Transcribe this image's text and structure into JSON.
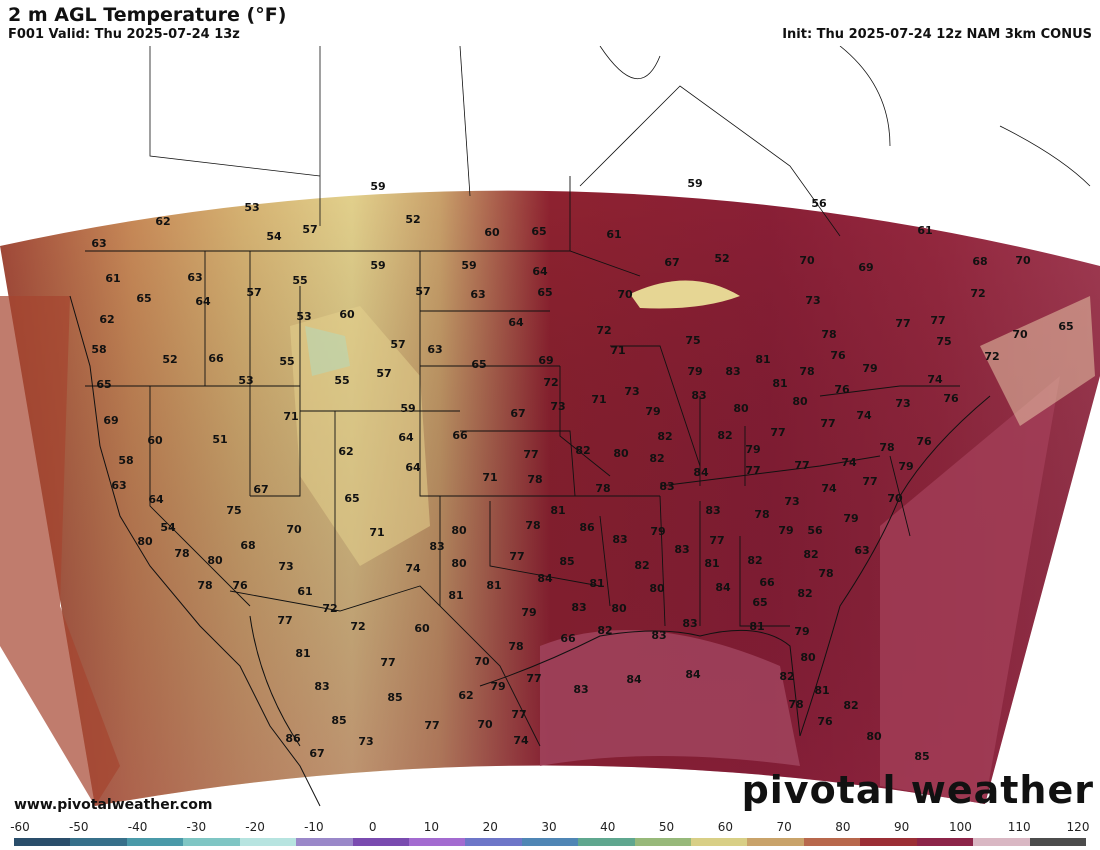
{
  "header": {
    "title": "2 m AGL Temperature (°F)",
    "valid": "F001 Valid: Thu 2025-07-24 13z",
    "init": "Init: Thu 2025-07-24 12z NAM 3km CONUS"
  },
  "footer": {
    "website": "www.pivotalweather.com",
    "brand": "pivotal weather"
  },
  "colorbar": {
    "ticks": [
      "-60",
      "-50",
      "-40",
      "-30",
      "-20",
      "-10",
      "0",
      "10",
      "20",
      "30",
      "40",
      "50",
      "60",
      "70",
      "80",
      "90",
      "100",
      "110",
      "120"
    ],
    "colors": [
      "#2a4e6b",
      "#37708a",
      "#4a9aa9",
      "#7fc6c4",
      "#b7e4e0",
      "#9a88c9",
      "#7a4bb0",
      "#a36bd0",
      "#6d76c8",
      "#4f86b5",
      "#5fa78f",
      "#97b97a",
      "#d8cf86",
      "#c9a36a",
      "#b8684c",
      "#9b2f35",
      "#8c2448",
      "#d9b7c3",
      "#4c4c4c"
    ],
    "accent_map": "#8a1f2e"
  },
  "stations": [
    {
      "v": "59"
    },
    {
      "v": "59"
    },
    {
      "v": "53"
    },
    {
      "v": "62"
    },
    {
      "v": "54"
    },
    {
      "v": "57"
    },
    {
      "v": "52"
    },
    {
      "v": "60"
    },
    {
      "v": "65"
    },
    {
      "v": "61"
    },
    {
      "v": "56"
    },
    {
      "v": "61"
    },
    {
      "v": "63"
    },
    {
      "v": "61"
    },
    {
      "v": "63"
    },
    {
      "v": "57"
    },
    {
      "v": "55"
    },
    {
      "v": "59"
    },
    {
      "v": "59"
    },
    {
      "v": "57"
    },
    {
      "v": "63"
    },
    {
      "v": "64"
    },
    {
      "v": "65"
    },
    {
      "v": "70"
    },
    {
      "v": "52"
    },
    {
      "v": "70"
    },
    {
      "v": "69"
    },
    {
      "v": "68"
    },
    {
      "v": "70"
    },
    {
      "v": "67"
    },
    {
      "v": "65"
    },
    {
      "v": "64"
    },
    {
      "v": "62"
    },
    {
      "v": "53"
    },
    {
      "v": "60"
    },
    {
      "v": "64"
    },
    {
      "v": "72"
    },
    {
      "v": "73"
    },
    {
      "v": "77"
    },
    {
      "v": "77"
    },
    {
      "v": "72"
    },
    {
      "v": "70"
    },
    {
      "v": "65"
    },
    {
      "v": "58"
    },
    {
      "v": "52"
    },
    {
      "v": "66"
    },
    {
      "v": "55"
    },
    {
      "v": "57"
    },
    {
      "v": "63"
    },
    {
      "v": "65"
    },
    {
      "v": "69"
    },
    {
      "v": "71"
    },
    {
      "v": "75"
    },
    {
      "v": "78"
    },
    {
      "v": "75"
    },
    {
      "v": "72"
    },
    {
      "v": "81"
    },
    {
      "v": "76"
    },
    {
      "v": "65"
    },
    {
      "v": "53"
    },
    {
      "v": "55"
    },
    {
      "v": "57"
    },
    {
      "v": "72"
    },
    {
      "v": "79"
    },
    {
      "v": "83"
    },
    {
      "v": "81"
    },
    {
      "v": "78"
    },
    {
      "v": "79"
    },
    {
      "v": "74"
    },
    {
      "v": "76"
    },
    {
      "v": "69"
    },
    {
      "v": "71"
    },
    {
      "v": "59"
    },
    {
      "v": "67"
    },
    {
      "v": "73"
    },
    {
      "v": "71"
    },
    {
      "v": "73"
    },
    {
      "v": "83"
    },
    {
      "v": "80"
    },
    {
      "v": "80"
    },
    {
      "v": "74"
    },
    {
      "v": "73"
    },
    {
      "v": "76"
    },
    {
      "v": "60"
    },
    {
      "v": "51"
    },
    {
      "v": "64"
    },
    {
      "v": "66"
    },
    {
      "v": "79"
    },
    {
      "v": "82"
    },
    {
      "v": "82"
    },
    {
      "v": "79"
    },
    {
      "v": "77"
    },
    {
      "v": "77"
    },
    {
      "v": "76"
    },
    {
      "v": "58"
    },
    {
      "v": "62"
    },
    {
      "v": "64"
    },
    {
      "v": "77"
    },
    {
      "v": "82"
    },
    {
      "v": "80"
    },
    {
      "v": "82"
    },
    {
      "v": "84"
    },
    {
      "v": "77"
    },
    {
      "v": "77"
    },
    {
      "v": "74"
    },
    {
      "v": "78"
    },
    {
      "v": "79"
    },
    {
      "v": "63"
    },
    {
      "v": "67"
    },
    {
      "v": "71"
    },
    {
      "v": "78"
    },
    {
      "v": "78"
    },
    {
      "v": "83"
    },
    {
      "v": "74"
    },
    {
      "v": "77"
    },
    {
      "v": "64"
    },
    {
      "v": "75"
    },
    {
      "v": "65"
    },
    {
      "v": "81"
    },
    {
      "v": "83"
    },
    {
      "v": "73"
    },
    {
      "v": "78"
    },
    {
      "v": "79"
    },
    {
      "v": "79"
    },
    {
      "v": "70"
    },
    {
      "v": "54"
    },
    {
      "v": "70"
    },
    {
      "v": "71"
    },
    {
      "v": "80"
    },
    {
      "v": "78"
    },
    {
      "v": "86"
    },
    {
      "v": "79"
    },
    {
      "v": "56"
    },
    {
      "v": "80"
    },
    {
      "v": "68"
    },
    {
      "v": "83"
    },
    {
      "v": "83"
    },
    {
      "v": "83"
    },
    {
      "v": "77"
    },
    {
      "v": "82"
    },
    {
      "v": "82"
    },
    {
      "v": "63"
    },
    {
      "v": "78"
    },
    {
      "v": "80"
    },
    {
      "v": "73"
    },
    {
      "v": "74"
    },
    {
      "v": "80"
    },
    {
      "v": "77"
    },
    {
      "v": "85"
    },
    {
      "v": "82"
    },
    {
      "v": "81"
    },
    {
      "v": "66"
    },
    {
      "v": "78"
    },
    {
      "v": "78"
    },
    {
      "v": "76"
    },
    {
      "v": "81"
    },
    {
      "v": "81"
    },
    {
      "v": "84"
    },
    {
      "v": "81"
    },
    {
      "v": "80"
    },
    {
      "v": "84"
    },
    {
      "v": "65"
    },
    {
      "v": "61"
    },
    {
      "v": "72"
    },
    {
      "v": "77"
    },
    {
      "v": "79"
    },
    {
      "v": "83"
    },
    {
      "v": "80"
    },
    {
      "v": "82"
    },
    {
      "v": "72"
    },
    {
      "v": "60"
    },
    {
      "v": "66"
    },
    {
      "v": "82"
    },
    {
      "v": "83"
    },
    {
      "v": "83"
    },
    {
      "v": "81"
    },
    {
      "v": "79"
    },
    {
      "v": "81"
    },
    {
      "v": "77"
    },
    {
      "v": "70"
    },
    {
      "v": "78"
    },
    {
      "v": "80"
    },
    {
      "v": "83"
    },
    {
      "v": "79"
    },
    {
      "v": "77"
    },
    {
      "v": "83"
    },
    {
      "v": "84"
    },
    {
      "v": "84"
    },
    {
      "v": "82"
    },
    {
      "v": "81"
    },
    {
      "v": "85"
    },
    {
      "v": "62"
    },
    {
      "v": "77"
    },
    {
      "v": "78"
    },
    {
      "v": "82"
    },
    {
      "v": "85"
    },
    {
      "v": "77"
    },
    {
      "v": "70"
    },
    {
      "v": "74"
    },
    {
      "v": "76"
    },
    {
      "v": "86"
    },
    {
      "v": "67"
    },
    {
      "v": "73"
    },
    {
      "v": "80"
    },
    {
      "v": "85"
    },
    {
      "v": "82"
    }
  ]
}
